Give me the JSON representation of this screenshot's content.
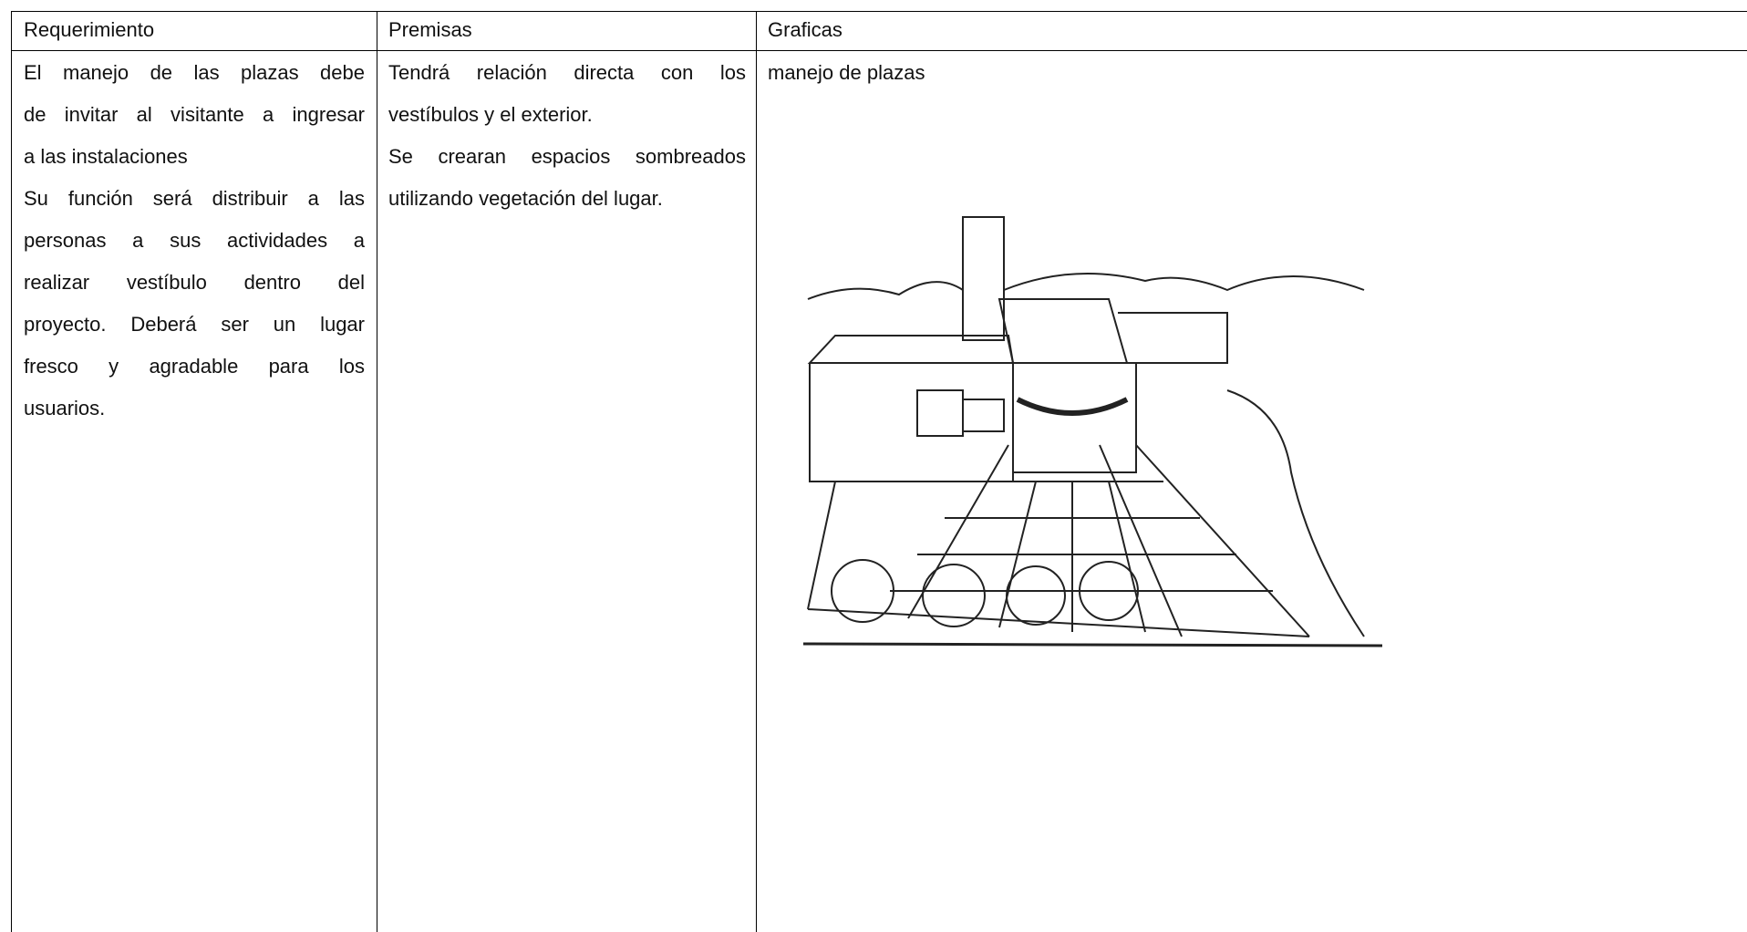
{
  "table": {
    "header": [
      "Requerimiento",
      "Premisas",
      "Graficas"
    ],
    "rows": [
      [
        {
          "paragraphs": [
            [
              "El manejo de las plazas debe",
              "de invitar al visitante a ingresar",
              "a las instalaciones"
            ],
            [
              "Su función será distribuir a las",
              "personas a sus actividades a",
              "realizar vestíbulo dentro del",
              "proyecto.  Deberá ser un lugar",
              "fresco y agradable para los",
              "usuarios."
            ]
          ]
        },
        {
          "paragraphs": [
            [
              "Tendrá relación directa con los",
              "vestíbulos y el exterior."
            ],
            [
              "Se crearan espacios sombreados",
              "utilizando vegetación del lugar."
            ]
          ]
        },
        {
          "paragraphs": [
            [
              "manejo de plazas"
            ]
          ]
        }
      ]
    ]
  }
}
